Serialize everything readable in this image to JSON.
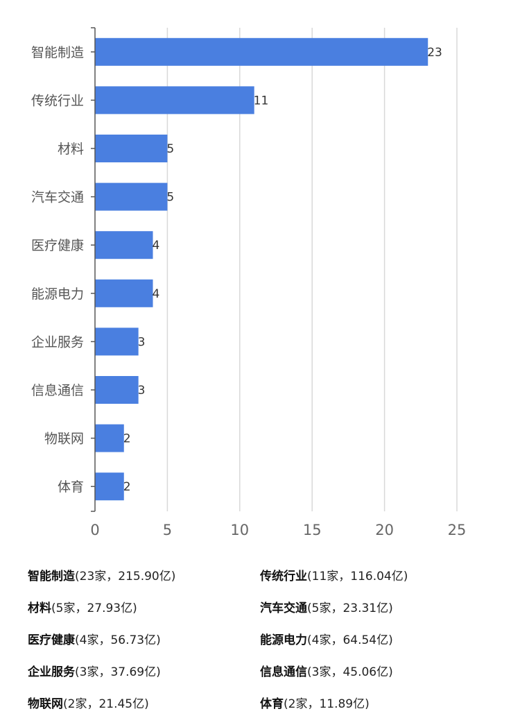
{
  "chart_data": {
    "type": "bar",
    "orientation": "horizontal",
    "categories": [
      "智能制造",
      "传统行业",
      "材料",
      "汽车交通",
      "医疗健康",
      "能源电力",
      "企业服务",
      "信息通信",
      "物联网",
      "体育"
    ],
    "values": [
      23,
      11,
      5,
      5,
      4,
      4,
      3,
      3,
      2,
      2
    ],
    "xlim": [
      0,
      25
    ],
    "xticks": [
      "0",
      "5",
      "10",
      "15",
      "20",
      "25"
    ],
    "grid": true,
    "bar_color": "#4a7fe0",
    "grid_color": "#d8d8d8",
    "axis_color": "#555555"
  },
  "legend": [
    {
      "name": "智能制造",
      "detail": "(23家，215.90亿)"
    },
    {
      "name": "传统行业",
      "detail": "(11家，116.04亿)"
    },
    {
      "name": "材料",
      "detail": "(5家，27.93亿)"
    },
    {
      "name": "汽车交通",
      "detail": "(5家，23.31亿)"
    },
    {
      "name": "医疗健康",
      "detail": "(4家，56.73亿)"
    },
    {
      "name": "能源电力",
      "detail": "(4家，64.54亿)"
    },
    {
      "name": "企业服务",
      "detail": "(3家，37.69亿)"
    },
    {
      "name": "信息通信",
      "detail": "(3家，45.06亿)"
    },
    {
      "name": "物联网",
      "detail": "(2家，21.45亿)"
    },
    {
      "name": "体育",
      "detail": "(2家，11.89亿)"
    }
  ]
}
